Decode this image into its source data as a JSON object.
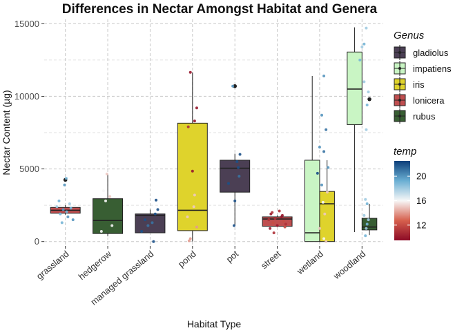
{
  "chart_data": {
    "type": "box",
    "title": "Differences in Nectar Amongst Habitat and Genera",
    "xlabel": "Habitat Type",
    "ylabel": "Nectar Content (µg)",
    "ylim": [
      -300,
      15300
    ],
    "y_ticks": [
      0,
      5000,
      10000,
      15000
    ],
    "y_tick_labels": [
      "0",
      "5000",
      "10000",
      "15000"
    ],
    "grid": true,
    "categories": [
      "grassland",
      "hedgerow",
      "managed grassland",
      "pond",
      "pot",
      "street",
      "wetland",
      "woodland"
    ],
    "boxes": [
      {
        "category": "grassland",
        "genus": "lonicera",
        "position": 0,
        "width": 0.7,
        "min": 1850,
        "q1": 1950,
        "median": 2150,
        "q3": 2350,
        "max": 2500,
        "outliers": [
          4250
        ]
      },
      {
        "category": "hedgerow",
        "genus": "rubus",
        "position": 0,
        "width": 0.7,
        "min": 300,
        "q1": 550,
        "median": 1450,
        "q3": 2950,
        "max": 4650,
        "outliers": []
      },
      {
        "category": "managed grassland",
        "genus": "gladiolus",
        "position": 0,
        "width": 0.7,
        "min": 600,
        "q1": 600,
        "median": 1800,
        "q3": 1900,
        "max": 2200,
        "outliers": []
      },
      {
        "category": "pond",
        "genus": "iris",
        "position": 0,
        "width": 0.7,
        "min": 0,
        "q1": 750,
        "median": 2150,
        "q3": 8150,
        "max": 11650,
        "outliers": []
      },
      {
        "category": "pot",
        "genus": "gladiolus",
        "position": 0,
        "width": 0.7,
        "min": 1100,
        "q1": 3400,
        "median": 5050,
        "q3": 5600,
        "max": 6050,
        "outliers": [
          10700
        ]
      },
      {
        "category": "street",
        "genus": "lonicera",
        "position": 0,
        "width": 0.7,
        "min": 1000,
        "q1": 1050,
        "median": 1550,
        "q3": 1700,
        "max": 1800,
        "outliers": []
      },
      {
        "category": "wetland",
        "genus": "impatiens",
        "position": -0.175,
        "width": 0.35,
        "min": 0,
        "q1": 0,
        "median": 600,
        "q3": 5600,
        "max": 11400,
        "outliers": []
      },
      {
        "category": "wetland",
        "genus": "iris",
        "position": 0.175,
        "width": 0.35,
        "min": 0,
        "q1": 0,
        "median": 2600,
        "q3": 3450,
        "max": 5600,
        "outliers": []
      },
      {
        "category": "woodland",
        "genus": "impatiens",
        "position": -0.175,
        "width": 0.35,
        "min": 650,
        "q1": 8050,
        "median": 10500,
        "q3": 13050,
        "max": 14750,
        "outliers": []
      },
      {
        "category": "woodland",
        "genus": "rubus",
        "position": 0.175,
        "width": 0.35,
        "min": 450,
        "q1": 800,
        "median": 1000,
        "q3": 1600,
        "max": 2600,
        "outliers": [
          9800
        ]
      }
    ],
    "points": [
      {
        "category": "grassland",
        "offset": -0.2,
        "y": 2400,
        "temp": 18
      },
      {
        "category": "grassland",
        "offset": -0.12,
        "y": 1900,
        "temp": 19
      },
      {
        "category": "grassland",
        "offset": -0.05,
        "y": 2200,
        "temp": 20
      },
      {
        "category": "grassland",
        "offset": 0.03,
        "y": 2050,
        "temp": 19
      },
      {
        "category": "grassland",
        "offset": 0.1,
        "y": 2600,
        "temp": 18
      },
      {
        "category": "grassland",
        "offset": 0.18,
        "y": 1500,
        "temp": 20
      },
      {
        "category": "grassland",
        "offset": -0.15,
        "y": 2800,
        "temp": 19
      },
      {
        "category": "grassland",
        "offset": 0.06,
        "y": 1700,
        "temp": 20
      },
      {
        "category": "grassland",
        "offset": 0.13,
        "y": 2300,
        "temp": 19
      },
      {
        "category": "grassland",
        "offset": -0.02,
        "y": 3900,
        "temp": 20
      },
      {
        "category": "grassland",
        "offset": 0.02,
        "y": 4350,
        "temp": 19
      },
      {
        "category": "grassland",
        "offset": -0.08,
        "y": 1300,
        "temp": 19
      },
      {
        "category": "hedgerow",
        "offset": -0.1,
        "y": 3500,
        "temp": 16
      },
      {
        "category": "hedgerow",
        "offset": -0.05,
        "y": 2800,
        "temp": 16
      },
      {
        "category": "hedgerow",
        "offset": 0.05,
        "y": 3100,
        "temp": 15
      },
      {
        "category": "hedgerow",
        "offset": -0.15,
        "y": 700,
        "temp": 16
      },
      {
        "category": "hedgerow",
        "offset": 0.02,
        "y": 300,
        "temp": 16
      },
      {
        "category": "hedgerow",
        "offset": 0.1,
        "y": 1100,
        "temp": 16
      },
      {
        "category": "hedgerow",
        "offset": -0.02,
        "y": 4650,
        "temp": 15
      },
      {
        "category": "managed grassland",
        "offset": -0.2,
        "y": 700,
        "temp": 22
      },
      {
        "category": "managed grassland",
        "offset": -0.12,
        "y": 1500,
        "temp": 22
      },
      {
        "category": "managed grassland",
        "offset": 0.05,
        "y": 1300,
        "temp": 21
      },
      {
        "category": "managed grassland",
        "offset": 0.12,
        "y": 1900,
        "temp": 22
      },
      {
        "category": "managed grassland",
        "offset": 0.18,
        "y": 2200,
        "temp": 22
      },
      {
        "category": "managed grassland",
        "offset": 0.08,
        "y": 0,
        "temp": 22
      },
      {
        "category": "managed grassland",
        "offset": -0.05,
        "y": 1100,
        "temp": 21
      },
      {
        "category": "managed grassland",
        "offset": 0.14,
        "y": 2850,
        "temp": 22
      },
      {
        "category": "pond",
        "offset": -0.05,
        "y": 11650,
        "temp": 10
      },
      {
        "category": "pond",
        "offset": 0.1,
        "y": 9200,
        "temp": 10
      },
      {
        "category": "pond",
        "offset": 0.05,
        "y": 8300,
        "temp": 10
      },
      {
        "category": "pond",
        "offset": -0.1,
        "y": 7900,
        "temp": 11
      },
      {
        "category": "pond",
        "offset": 0.0,
        "y": 4850,
        "temp": 10
      },
      {
        "category": "pond",
        "offset": 0.03,
        "y": 2400,
        "temp": 15
      },
      {
        "category": "pond",
        "offset": -0.12,
        "y": 1700,
        "temp": 15
      },
      {
        "category": "pond",
        "offset": 0.1,
        "y": 1000,
        "temp": 14
      },
      {
        "category": "pond",
        "offset": -0.05,
        "y": 200,
        "temp": 14
      },
      {
        "category": "pond",
        "offset": -0.08,
        "y": 50,
        "temp": 14
      },
      {
        "category": "pond",
        "offset": 0.05,
        "y": 3200,
        "temp": 15
      },
      {
        "category": "pot",
        "offset": -0.05,
        "y": 10700,
        "temp": 20
      },
      {
        "category": "pot",
        "offset": 0.12,
        "y": 6000,
        "temp": 22
      },
      {
        "category": "pot",
        "offset": 0.05,
        "y": 5500,
        "temp": 22
      },
      {
        "category": "pot",
        "offset": 0.1,
        "y": 4500,
        "temp": 21
      },
      {
        "category": "pot",
        "offset": -0.15,
        "y": 4000,
        "temp": 22
      },
      {
        "category": "pot",
        "offset": 0.0,
        "y": 2800,
        "temp": 22
      },
      {
        "category": "pot",
        "offset": -0.02,
        "y": 1100,
        "temp": 22
      },
      {
        "category": "pot",
        "offset": 0.08,
        "y": 5100,
        "temp": 22
      },
      {
        "category": "street",
        "offset": -0.2,
        "y": 1500,
        "temp": 11
      },
      {
        "category": "street",
        "offset": -0.15,
        "y": 1900,
        "temp": 10
      },
      {
        "category": "street",
        "offset": -0.1,
        "y": 1300,
        "temp": 12
      },
      {
        "category": "street",
        "offset": -0.05,
        "y": 1600,
        "temp": 11
      },
      {
        "category": "street",
        "offset": 0.0,
        "y": 1100,
        "temp": 10
      },
      {
        "category": "street",
        "offset": 0.05,
        "y": 2100,
        "temp": 11
      },
      {
        "category": "street",
        "offset": 0.1,
        "y": 1700,
        "temp": 10
      },
      {
        "category": "street",
        "offset": 0.15,
        "y": 1400,
        "temp": 12
      },
      {
        "category": "street",
        "offset": 0.2,
        "y": 1200,
        "temp": 11
      },
      {
        "category": "street",
        "offset": -0.17,
        "y": 900,
        "temp": 10
      },
      {
        "category": "street",
        "offset": -0.08,
        "y": 600,
        "temp": 11
      },
      {
        "category": "street",
        "offset": 0.12,
        "y": 1800,
        "temp": 10
      },
      {
        "category": "street",
        "offset": 0.18,
        "y": 1000,
        "temp": 12
      },
      {
        "category": "street",
        "offset": -0.12,
        "y": 2000,
        "temp": 11
      },
      {
        "category": "wetland",
        "offset": 0.1,
        "y": 11400,
        "temp": 20
      },
      {
        "category": "wetland",
        "offset": 0.05,
        "y": 8700,
        "temp": 20
      },
      {
        "category": "wetland",
        "offset": 0.15,
        "y": 7700,
        "temp": 21
      },
      {
        "category": "wetland",
        "offset": 0.0,
        "y": 6500,
        "temp": 20
      },
      {
        "category": "wetland",
        "offset": 0.1,
        "y": 6200,
        "temp": 21
      },
      {
        "category": "wetland",
        "offset": 0.2,
        "y": 5100,
        "temp": 20
      },
      {
        "category": "wetland",
        "offset": -0.05,
        "y": 4700,
        "temp": 22
      },
      {
        "category": "wetland",
        "offset": 0.05,
        "y": 3900,
        "temp": 20
      },
      {
        "category": "wetland",
        "offset": 0.18,
        "y": 3400,
        "temp": 15
      },
      {
        "category": "wetland",
        "offset": 0.12,
        "y": 1900,
        "temp": 15
      },
      {
        "category": "wetland",
        "offset": 0.0,
        "y": 900,
        "temp": 15
      },
      {
        "category": "wetland",
        "offset": 0.1,
        "y": 200,
        "temp": 16
      },
      {
        "category": "wetland",
        "offset": 0.15,
        "y": 0,
        "temp": 15
      },
      {
        "category": "wetland",
        "offset": 0.08,
        "y": 2700,
        "temp": 16
      },
      {
        "category": "woodland",
        "offset": 0.1,
        "y": 14700,
        "temp": 18
      },
      {
        "category": "woodland",
        "offset": 0.05,
        "y": 13600,
        "temp": 19
      },
      {
        "category": "woodland",
        "offset": 0.0,
        "y": 13400,
        "temp": 18
      },
      {
        "category": "woodland",
        "offset": -0.05,
        "y": 12500,
        "temp": 19
      },
      {
        "category": "woodland",
        "offset": 0.05,
        "y": 11000,
        "temp": 18
      },
      {
        "category": "woodland",
        "offset": 0.15,
        "y": 10300,
        "temp": 18
      },
      {
        "category": "woodland",
        "offset": 0.12,
        "y": 9400,
        "temp": 19
      },
      {
        "category": "woodland",
        "offset": 0.1,
        "y": 7700,
        "temp": 18
      },
      {
        "category": "woodland",
        "offset": 0.08,
        "y": 2900,
        "temp": 18
      },
      {
        "category": "woodland",
        "offset": 0.12,
        "y": 2600,
        "temp": 19
      },
      {
        "category": "woodland",
        "offset": 0.05,
        "y": 1800,
        "temp": 18
      },
      {
        "category": "woodland",
        "offset": 0.12,
        "y": 1200,
        "temp": 19
      },
      {
        "category": "woodland",
        "offset": 0.15,
        "y": 1500,
        "temp": 18
      },
      {
        "category": "woodland",
        "offset": 0.08,
        "y": 400,
        "temp": 19
      },
      {
        "category": "woodland",
        "offset": 0.1,
        "y": 900,
        "temp": 18
      }
    ],
    "legend_genus": {
      "title": "Genus",
      "placement": "right",
      "entries": [
        {
          "label": "gladiolus",
          "color": "#4b3f54"
        },
        {
          "label": "impatiens",
          "color": "#c9f5c4"
        },
        {
          "label": "iris",
          "color": "#dfd32c"
        },
        {
          "label": "lonicera",
          "color": "#bf4e4f"
        },
        {
          "label": "rubus",
          "color": "#385e33"
        }
      ]
    },
    "legend_temp": {
      "title": "temp",
      "placement": "right",
      "range": [
        9.5,
        22.5
      ],
      "ticks": [
        12,
        16,
        20
      ],
      "tick_labels": [
        "12",
        "16",
        "20"
      ],
      "colors": [
        "#8c0a26",
        "#d6604d",
        "#f7f7f7",
        "#6aafd3",
        "#0d3f7a"
      ]
    }
  }
}
